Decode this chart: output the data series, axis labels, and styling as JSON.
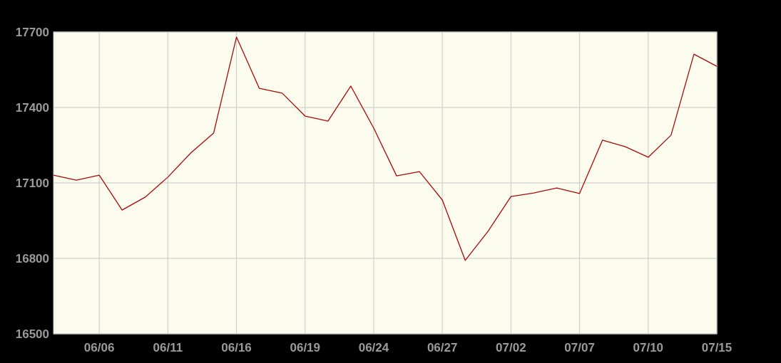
{
  "chart_data": {
    "type": "line",
    "categories": [
      null,
      null,
      "06/06",
      null,
      null,
      "06/11",
      null,
      null,
      "06/16",
      null,
      null,
      "06/19",
      null,
      null,
      "06/24",
      null,
      null,
      "06/27",
      null,
      null,
      "07/02",
      null,
      null,
      "07/07",
      null,
      null,
      "07/10",
      null,
      null,
      "07/15"
    ],
    "series": [
      {
        "color": "#aa0a0a",
        "values": [
          17131,
          17111,
          17131,
          16992,
          17043,
          17123,
          17219,
          17298,
          17680,
          17476,
          17457,
          17366,
          17346,
          17485,
          17318,
          17128,
          17145,
          17032,
          16792,
          16908,
          17046,
          17060,
          17080,
          17058,
          17270,
          17244,
          17202,
          17290,
          17612,
          17564
        ]
      }
    ],
    "ylim": [
      16500,
      17700
    ],
    "yticks": [
      16500,
      16800,
      17100,
      17400,
      17700
    ],
    "grid": true,
    "line_style": "solid"
  }
}
